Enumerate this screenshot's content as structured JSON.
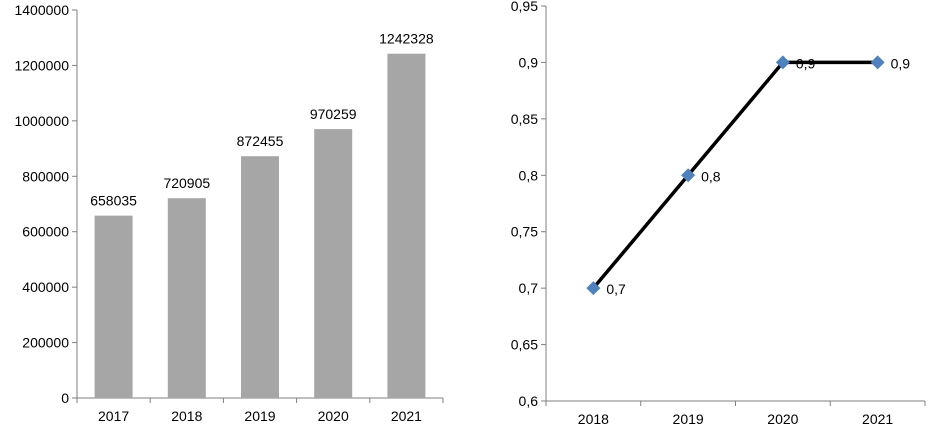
{
  "chart_data": [
    {
      "type": "bar",
      "categories": [
        "2017",
        "2018",
        "2019",
        "2020",
        "2021"
      ],
      "values": [
        658035,
        720905,
        872455,
        970259,
        1242328
      ],
      "data_labels": [
        "658035",
        "720905",
        "872455",
        "970259",
        "1242328"
      ],
      "title": "",
      "xlabel": "",
      "ylabel": "",
      "ylim": [
        0,
        1400000
      ],
      "y_ticks": [
        "0",
        "200000",
        "400000",
        "600000",
        "800000",
        "1000000",
        "1200000",
        "1400000"
      ],
      "grid": false,
      "legend": "none",
      "bar_color": "#a6a6a6"
    },
    {
      "type": "line",
      "categories": [
        "2018",
        "2019",
        "2020",
        "2021"
      ],
      "values": [
        0.7,
        0.8,
        0.9,
        0.9
      ],
      "data_labels": [
        "0,7",
        "0,8",
        "0,9",
        "0,9"
      ],
      "title": "",
      "xlabel": "",
      "ylabel": "",
      "ylim": [
        0.6,
        0.95
      ],
      "y_ticks": [
        "0,6",
        "0,65",
        "0,7",
        "0,75",
        "0,8",
        "0,85",
        "0,9",
        "0,95"
      ],
      "grid": false,
      "legend": "none",
      "line_color": "#000000",
      "marker_color": "#4f81bd",
      "marker": "diamond"
    }
  ]
}
